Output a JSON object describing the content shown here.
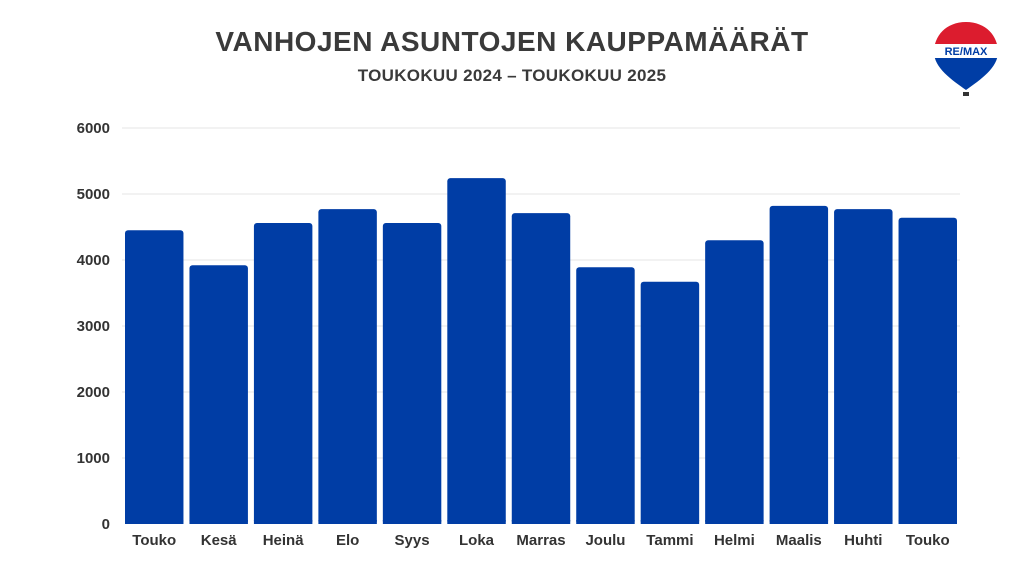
{
  "title": "VANHOJEN ASUNTOJEN KAUPPAMÄÄRÄT",
  "subtitle": "TOUKOKUU 2024 – TOUKOKUU 2025",
  "logo": {
    "text": "RE/MAX",
    "icon": "remax-balloon-logo"
  },
  "colors": {
    "bar": "#003DA5",
    "text": "#333333",
    "grid": "#e6e6e6",
    "logo_red": "#DC1C2E",
    "logo_blue": "#003DA5"
  },
  "chart_data": {
    "type": "bar",
    "categories": [
      "Touko",
      "Kesä",
      "Heinä",
      "Elo",
      "Syys",
      "Loka",
      "Marras",
      "Joulu",
      "Tammi",
      "Helmi",
      "Maalis",
      "Huhti",
      "Touko"
    ],
    "values": [
      4450,
      3920,
      4560,
      4770,
      4560,
      5240,
      4710,
      3890,
      3670,
      4300,
      4820,
      4770,
      4640
    ],
    "title": "VANHOJEN ASUNTOJEN KAUPPAMÄÄRÄT",
    "subtitle": "TOUKOKUU 2024 – TOUKOKUU 2025",
    "xlabel": "",
    "ylabel": "",
    "ylim": [
      0,
      6000
    ],
    "yticks": [
      0,
      1000,
      2000,
      3000,
      4000,
      5000,
      6000
    ],
    "grid": true,
    "legend": "none"
  }
}
